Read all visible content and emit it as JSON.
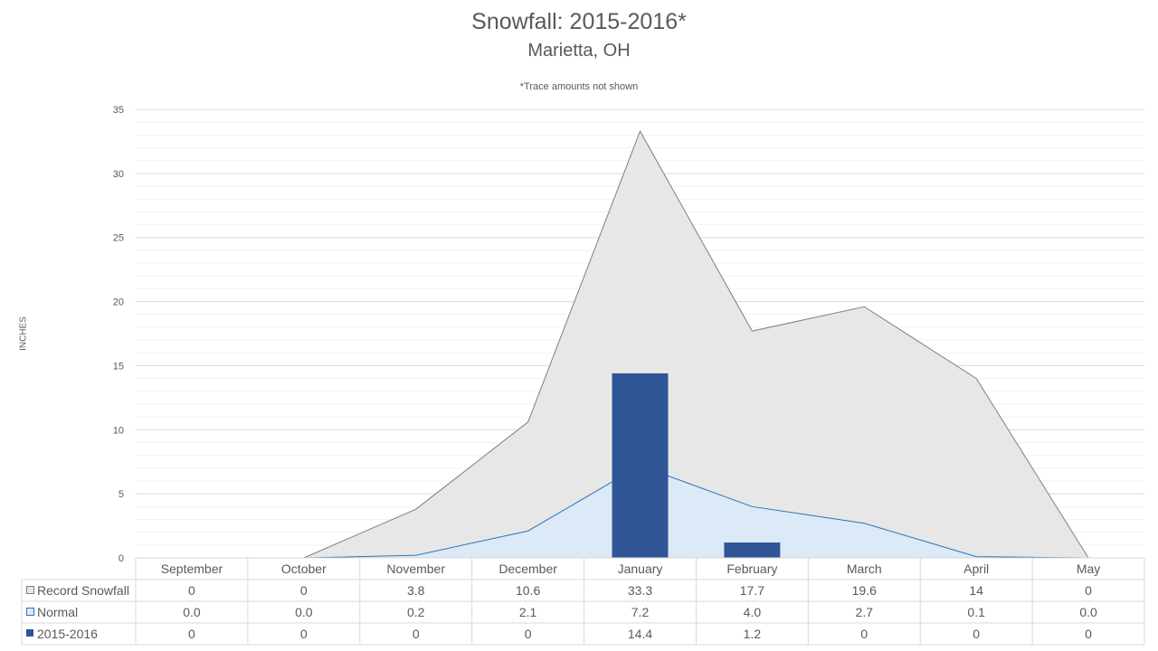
{
  "chart_data": {
    "type": "area",
    "title": "Snowfall: 2015-2016*",
    "subtitle": "Marietta, OH",
    "note": "*Trace amounts not shown",
    "ylabel": "INCHES",
    "xlabel": "",
    "ylim": [
      0,
      35
    ],
    "yticks": [
      "0",
      "5",
      "10",
      "15",
      "20",
      "25",
      "30",
      "35"
    ],
    "grid": true,
    "legend": "data-table-below",
    "categories": [
      "September",
      "October",
      "November",
      "December",
      "January",
      "February",
      "March",
      "April",
      "May"
    ],
    "series": [
      {
        "name": "Record Snowfall",
        "kind": "area",
        "color": "#e7e7e7",
        "line_color": "#7f7f7f",
        "values": [
          0,
          0,
          3.8,
          10.6,
          33.3,
          17.7,
          19.6,
          14,
          0
        ],
        "labels": [
          "0",
          "0",
          "3.8",
          "10.6",
          "33.3",
          "17.7",
          "19.6",
          "14",
          "0"
        ]
      },
      {
        "name": "Normal",
        "kind": "area",
        "color": "#dce9f6",
        "line_color": "#2e75b6",
        "values": [
          0.0,
          0.0,
          0.2,
          2.1,
          7.2,
          4.0,
          2.7,
          0.1,
          0.0
        ],
        "labels": [
          "0.0",
          "0.0",
          "0.2",
          "2.1",
          "7.2",
          "4.0",
          "2.7",
          "0.1",
          "0.0"
        ]
      },
      {
        "name": "2015-2016",
        "kind": "bar",
        "color": "#2f5597",
        "values": [
          0,
          0,
          0,
          0,
          14.4,
          1.2,
          0,
          0,
          0
        ],
        "labels": [
          "0",
          "0",
          "0",
          "0",
          "14.4",
          "1.2",
          "0",
          "0",
          "0"
        ]
      }
    ]
  }
}
